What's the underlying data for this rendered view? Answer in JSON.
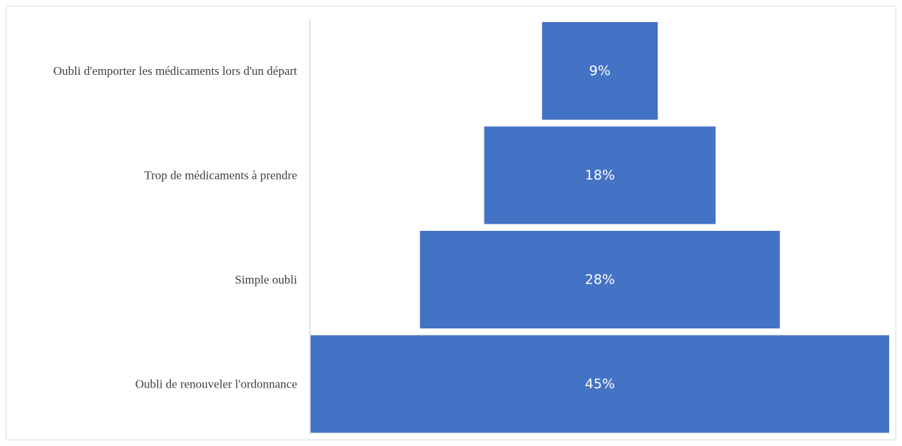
{
  "chart_data": {
    "type": "bar",
    "subtype": "funnel",
    "orientation": "horizontal",
    "categories": [
      "Oubli d'emporter les médicaments lors d'un départ",
      "Trop de médicaments à prendre",
      "Simple oubli",
      "Oubli de renouveler l'ordonnance"
    ],
    "values": [
      9,
      18,
      28,
      45
    ],
    "data_labels": [
      "9%",
      "18%",
      "28%",
      "45%"
    ],
    "unit": "%",
    "title": "",
    "xlabel": "",
    "ylabel": "",
    "xlim": [
      0,
      45
    ],
    "grid": false,
    "legend": "none",
    "bar_color": "#4472C4",
    "label_color": "#FFFFFF",
    "axis_color": "#D9D9D9",
    "category_text_color": "#404040"
  }
}
